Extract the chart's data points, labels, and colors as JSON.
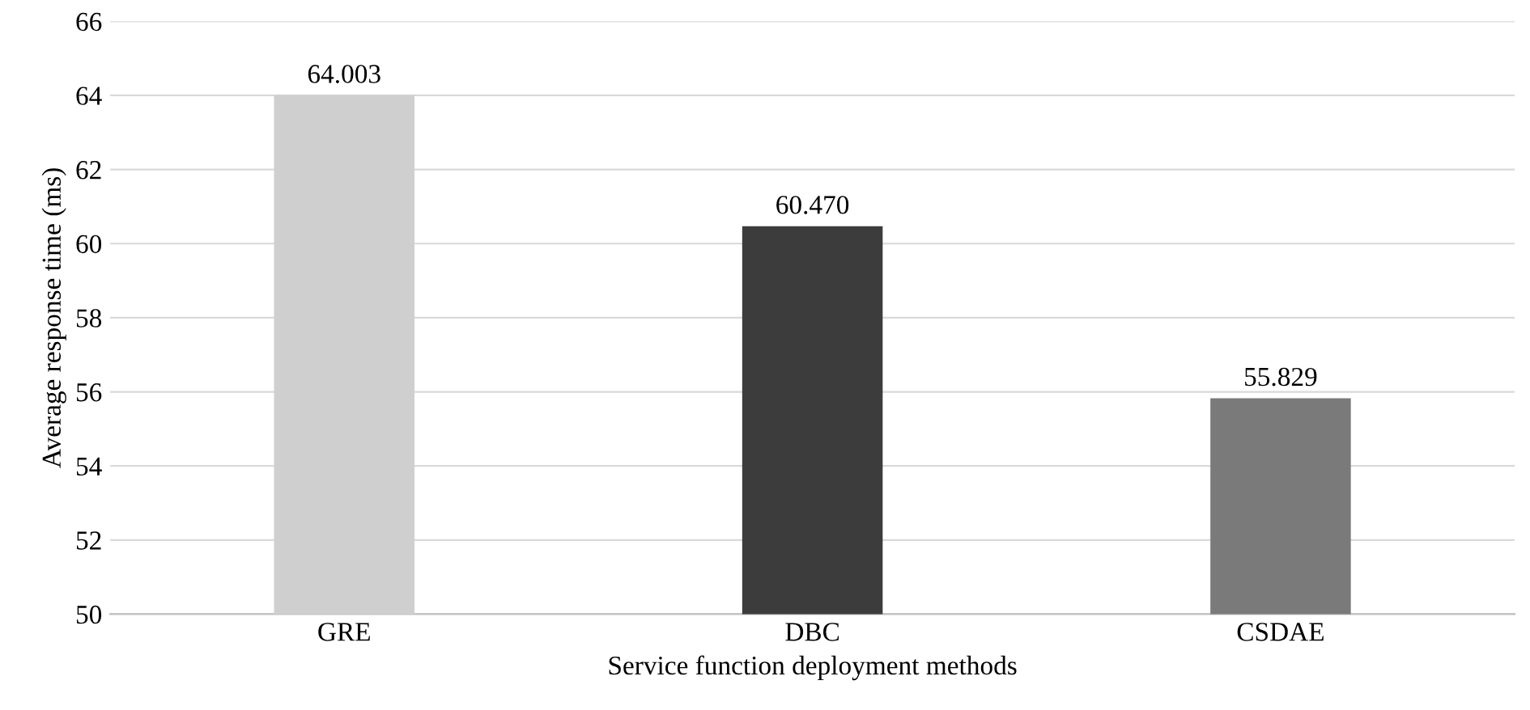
{
  "chart_data": {
    "type": "bar",
    "xlabel": "Service function deployment methods",
    "ylabel": "Average response time (ms)",
    "categories": [
      "GRE",
      "DBC",
      "CSDAE"
    ],
    "values": [
      64.003,
      60.47,
      55.829
    ],
    "value_labels": [
      "64.003",
      "60.470",
      "55.829"
    ],
    "colors": [
      "#cfcfcf",
      "#3c3c3c",
      "#7a7a7a"
    ],
    "ylim": [
      50,
      66
    ],
    "yticks": [
      50,
      52,
      54,
      56,
      58,
      60,
      62,
      64,
      66
    ],
    "grid": "y"
  }
}
